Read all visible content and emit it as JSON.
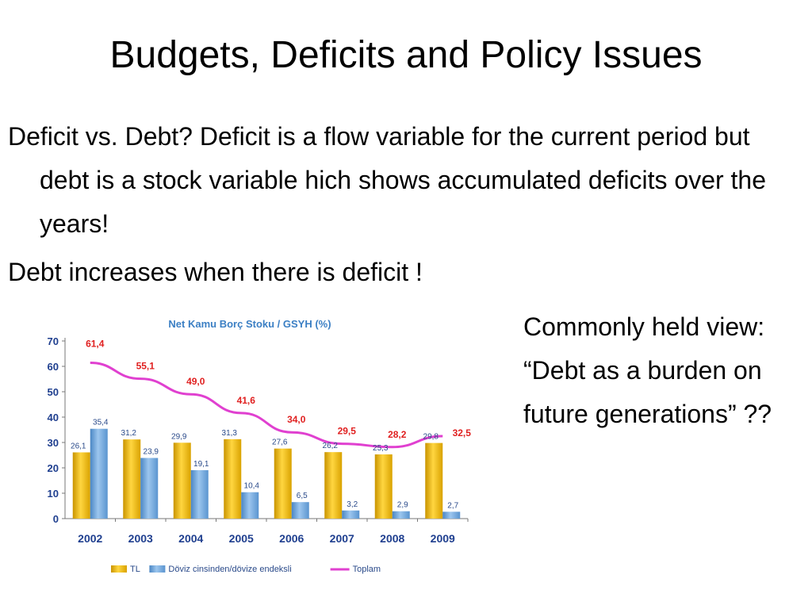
{
  "slide": {
    "title": "Budgets, Deficits and Policy Issues",
    "bullets": [
      "Deficit vs. Debt?  Deficit is a flow variable for the current period but debt is a stock variable hich shows accumulated deficits over the years!",
      "Debt increases when there is deficit !"
    ],
    "side_note": "Commonly held view: “Debt as a burden on future generations” ??"
  },
  "chart_data": {
    "type": "bar",
    "title": "Net Kamu Borç Stoku / GSYH (%)",
    "categories": [
      "2002",
      "2003",
      "2004",
      "2005",
      "2006",
      "2007",
      "2008",
      "2009"
    ],
    "ylim": [
      0,
      70
    ],
    "yticks": [
      0,
      10,
      20,
      30,
      40,
      50,
      60,
      70
    ],
    "grid": false,
    "legend_position": "bottom",
    "series": [
      {
        "name": "TL",
        "kind": "bar",
        "color": "#f0b400",
        "values": [
          26.1,
          31.2,
          29.9,
          31.3,
          27.6,
          26.2,
          25.3,
          29.8
        ],
        "labels": [
          "26,1",
          "31,2",
          "29,9",
          "31,3",
          "27,6",
          "26,2",
          "25,3",
          "29,8"
        ]
      },
      {
        "name": "Döviz cinsinden/dövize endeksli",
        "kind": "bar",
        "color": "#6aa5dc",
        "values": [
          35.4,
          23.9,
          19.1,
          10.4,
          6.5,
          3.2,
          2.9,
          2.7
        ],
        "labels": [
          "35,4",
          "23,9",
          "19,1",
          "10,4",
          "6,5",
          "3,2",
          "2,9",
          "2,7"
        ]
      },
      {
        "name": "Toplam",
        "kind": "line",
        "color": "#e040d0",
        "label_color": "#e02020",
        "values": [
          61.4,
          55.1,
          49.0,
          41.6,
          34.0,
          29.5,
          28.2,
          32.5
        ],
        "labels": [
          "61,4",
          "55,1",
          "49,0",
          "41,6",
          "34,0",
          "29,5",
          "28,2",
          "32,5"
        ]
      }
    ]
  }
}
